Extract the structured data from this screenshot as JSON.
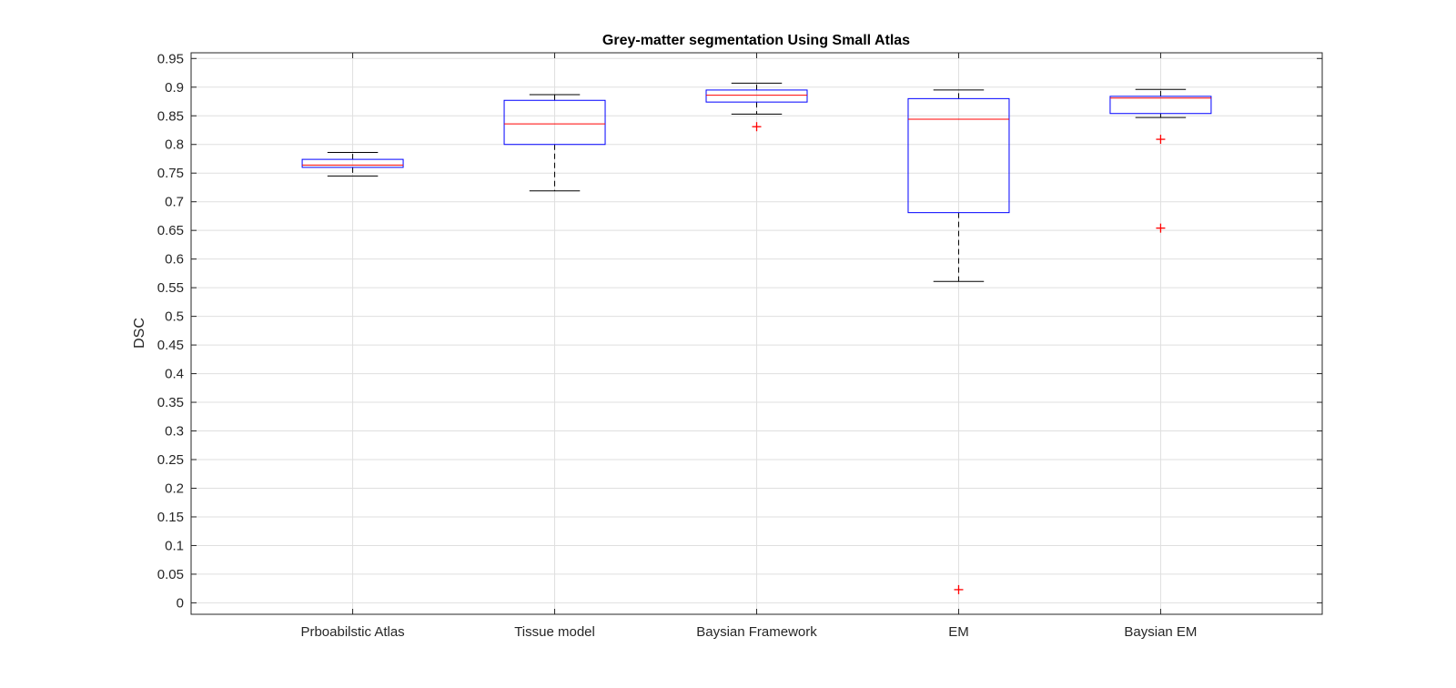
{
  "chart_data": {
    "type": "boxplot",
    "title": "Grey-matter segmentation Using Small Atlas",
    "xlabel": "",
    "ylabel": "DSC",
    "ylim": [
      -0.02,
      0.96
    ],
    "yticks": [
      "0",
      "0.05",
      "0.1",
      "0.15",
      "0.2",
      "0.25",
      "0.3",
      "0.35",
      "0.4",
      "0.45",
      "0.5",
      "0.55",
      "0.6",
      "0.65",
      "0.7",
      "0.75",
      "0.8",
      "0.85",
      "0.9",
      "0.95"
    ],
    "grid": true,
    "categories": [
      "Prboabilstic Atlas",
      "Tissue model",
      "Baysian Framework",
      "EM",
      "Baysian EM"
    ],
    "boxes": [
      {
        "whisker_low": 0.745,
        "q1": 0.76,
        "median": 0.764,
        "q3": 0.774,
        "whisker_high": 0.786,
        "outliers": []
      },
      {
        "whisker_low": 0.719,
        "q1": 0.8,
        "median": 0.836,
        "q3": 0.877,
        "whisker_high": 0.887,
        "outliers": []
      },
      {
        "whisker_low": 0.853,
        "q1": 0.874,
        "median": 0.886,
        "q3": 0.895,
        "whisker_high": 0.907,
        "outliers": [
          0.831
        ]
      },
      {
        "whisker_low": 0.561,
        "q1": 0.681,
        "median": 0.844,
        "q3": 0.88,
        "whisker_high": 0.895,
        "outliers": [
          0.023
        ]
      },
      {
        "whisker_low": 0.847,
        "q1": 0.854,
        "median": 0.881,
        "q3": 0.884,
        "whisker_high": 0.896,
        "outliers": [
          0.809,
          0.654
        ]
      }
    ],
    "colors": {
      "box": "#0000ff",
      "median": "#ff0000",
      "whisker": "#000000",
      "outlier": "#ff0000",
      "grid": "#dfdfdf",
      "axis": "#262626"
    }
  }
}
